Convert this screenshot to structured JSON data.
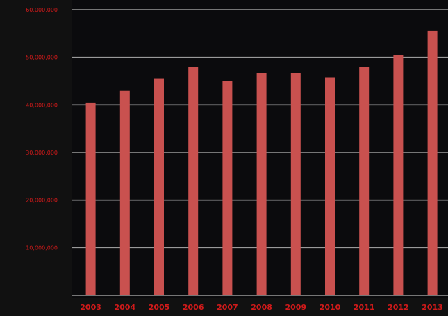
{
  "chart_data": {
    "type": "bar",
    "title": "",
    "xlabel": "",
    "ylabel": "",
    "categories": [
      "2003",
      "2004",
      "2005",
      "2006",
      "2007",
      "2008",
      "2009",
      "2010",
      "2011",
      "2012",
      "2013"
    ],
    "values": [
      40500000,
      43000000,
      45500000,
      48000000,
      45000000,
      46700000,
      46700000,
      45800000,
      48000000,
      50500000,
      55500000
    ],
    "ylim": [
      0,
      60000000
    ],
    "y_ticks": [
      10000000,
      20000000,
      30000000,
      40000000,
      50000000,
      60000000
    ],
    "y_tick_labels": [
      "10,000,000",
      "20,000,000",
      "30,000,000",
      "40,000,000",
      "50,000,000",
      "60,000,000"
    ],
    "grid": true,
    "legend": "none",
    "colors": {
      "background": "#111111",
      "plot_background": "#0b0b0d",
      "bar": "#c9514f",
      "gridline": "#9a9a9a",
      "label": "#d21a1a"
    }
  }
}
